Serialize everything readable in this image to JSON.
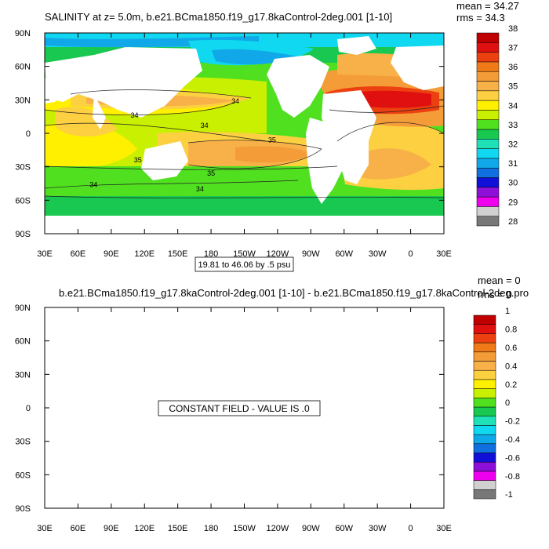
{
  "chart_data": [
    {
      "type": "heatmap",
      "title": "SALINITY at z=   5.0m, b.e21.BCma1850.f19_g17.8kaControl-2deg.001 [1-10]",
      "stats": [
        "mean = 34.27",
        "rms = 34.3"
      ],
      "contour_info": "19.81 to 46.06 by .5 psu",
      "x_ticks": [
        "30E",
        "60E",
        "90E",
        "120E",
        "150E",
        "180",
        "150W",
        "120W",
        "90W",
        "60W",
        "30W",
        "0",
        "30E"
      ],
      "y_ticks": [
        "90N",
        "60N",
        "30N",
        "0",
        "30S",
        "60S",
        "90S"
      ],
      "xlim": [
        30,
        390
      ],
      "ylim": [
        -90,
        90
      ],
      "contour_labels": [
        {
          "text": "34",
          "lon": 202,
          "lat": 29
        },
        {
          "text": "34",
          "lon": 111,
          "lat": 16
        },
        {
          "text": "34",
          "lon": 174,
          "lat": 7
        },
        {
          "text": "35",
          "lon": 114,
          "lat": -24
        },
        {
          "text": "35",
          "lon": 235,
          "lat": -6
        },
        {
          "text": "35",
          "lon": 180,
          "lat": -36
        },
        {
          "text": "34",
          "lon": 74,
          "lat": -46
        },
        {
          "text": "34",
          "lon": 170,
          "lat": -50
        }
      ],
      "colorbar": {
        "labels": [
          "28",
          "29",
          "30",
          "31",
          "32",
          "33",
          "34",
          "35",
          "36",
          "37",
          "38"
        ],
        "colors": [
          "#787878",
          "#d0d0d0",
          "#ee00ee",
          "#8c10d8",
          "#1010d8",
          "#1070e0",
          "#10a8e8",
          "#10d8f0",
          "#20e0b8",
          "#18c850",
          "#50e020",
          "#c8f000",
          "#fff000",
          "#fcd040",
          "#f8b048",
          "#f49c38",
          "#f07a18",
          "#ec4010",
          "#e01010",
          "#c00000"
        ]
      }
    },
    {
      "type": "heatmap",
      "title": "b.e21.BCma1850.f19_g17.8kaControl-2deg.001 [1-10] - b.e21.BCma1850.f19_g17.8kaControl-2deg.pro",
      "stats": [
        "mean = 0",
        "rms = 0"
      ],
      "annotation": "CONSTANT FIELD - VALUE IS .0",
      "x_ticks": [
        "30E",
        "60E",
        "90E",
        "120E",
        "150E",
        "180",
        "150W",
        "120W",
        "90W",
        "60W",
        "30W",
        "0",
        "30E"
      ],
      "y_ticks": [
        "90N",
        "60N",
        "30N",
        "0",
        "30S",
        "60S",
        "90S"
      ],
      "xlim": [
        30,
        390
      ],
      "ylim": [
        -90,
        90
      ],
      "colorbar": {
        "labels": [
          "-1",
          "-0.8",
          "-0.6",
          "-0.4",
          "-0.2",
          "0",
          "0.2",
          "0.4",
          "0.6",
          "0.8",
          "1"
        ],
        "colors": [
          "#787878",
          "#d0d0d0",
          "#ee00ee",
          "#8c10d8",
          "#1010d8",
          "#1070e0",
          "#10a8e8",
          "#10d8f0",
          "#20e0b8",
          "#18c850",
          "#50e020",
          "#c8f000",
          "#fff000",
          "#fcd040",
          "#f8b048",
          "#f49c38",
          "#f07a18",
          "#ec4010",
          "#e01010",
          "#c00000"
        ]
      }
    }
  ]
}
